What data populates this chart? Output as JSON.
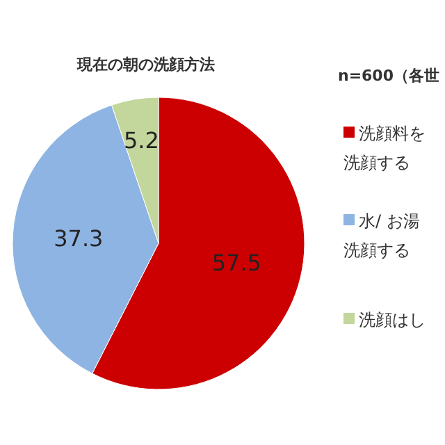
{
  "chart_data": {
    "type": "pie",
    "title": "現在の朝の洗顔方法",
    "subtitle": "n=600（各世",
    "categories": [
      "洗顔料を洗顔する",
      "水/ お湯洗顔する",
      "洗顔はし"
    ],
    "values": [
      57.5,
      37.3,
      5.2
    ],
    "colors": [
      "#cc0000",
      "#8eb4e3",
      "#c3d69b"
    ],
    "data_labels": true,
    "legend": "right"
  }
}
